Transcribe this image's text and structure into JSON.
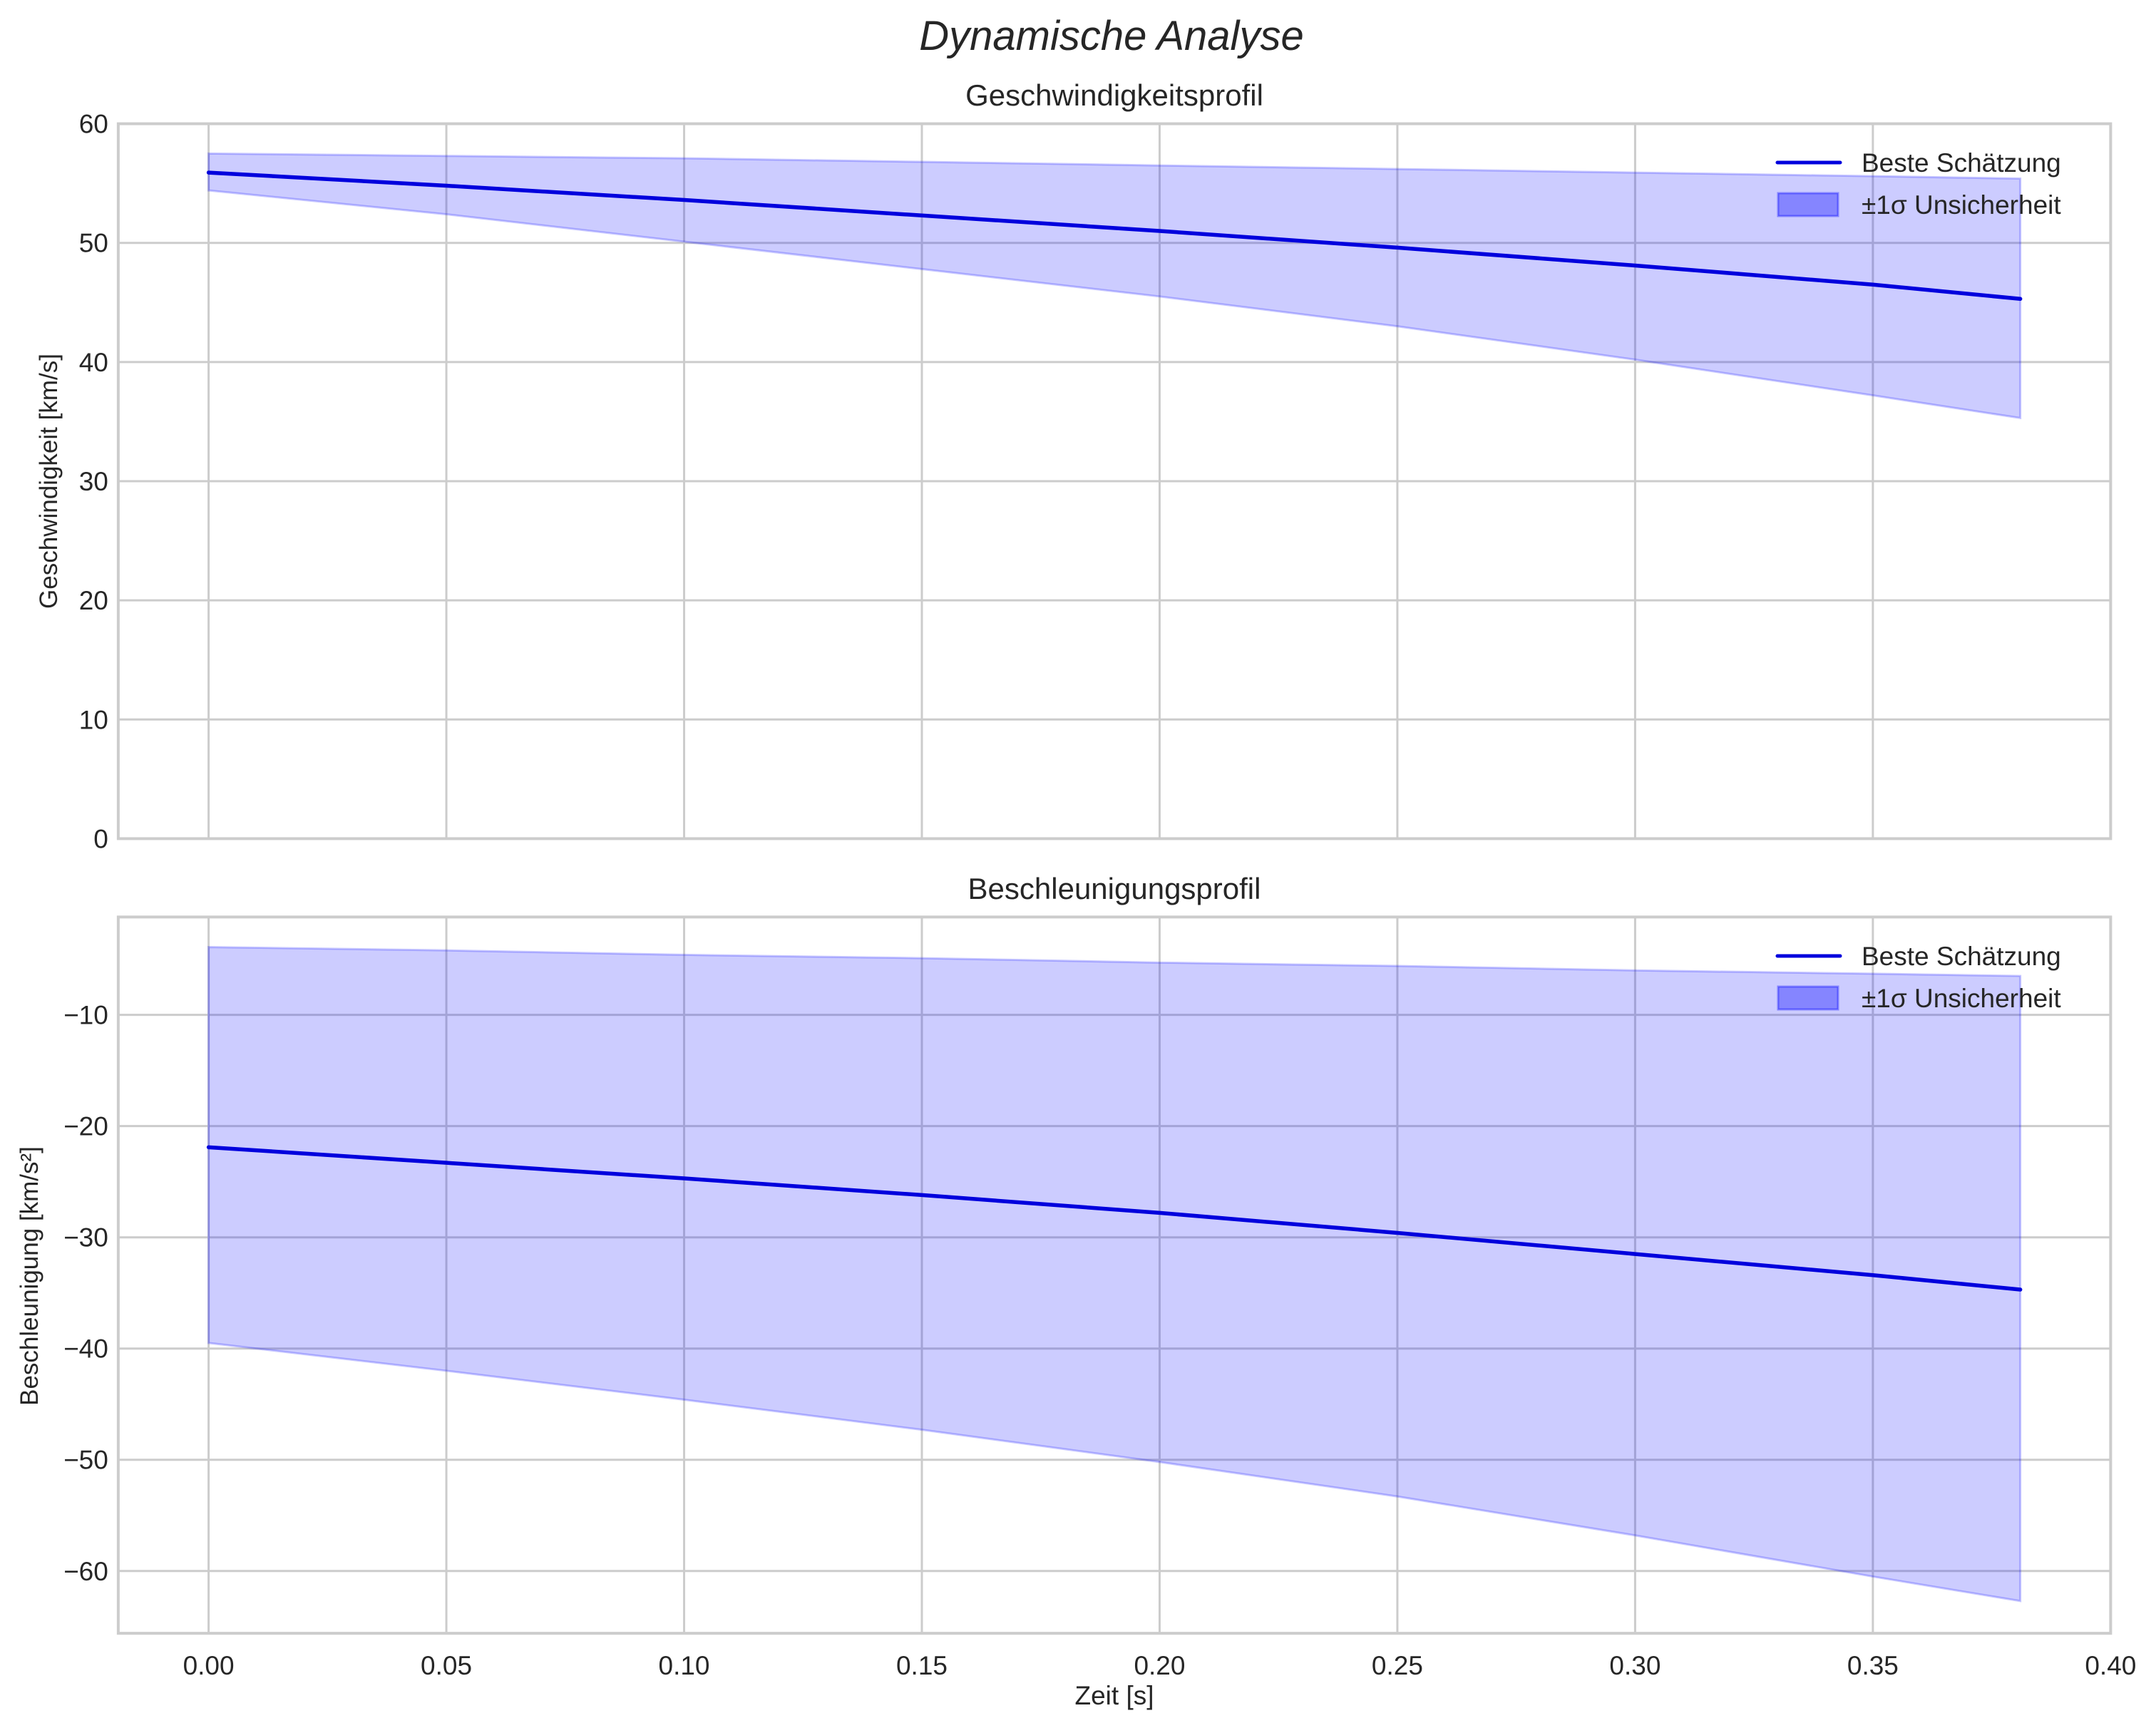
{
  "figure": {
    "suptitle": "Dynamische Analyse",
    "xlabel": "Zeit [s]",
    "xticks": [
      "0.00",
      "0.05",
      "0.10",
      "0.15",
      "0.20",
      "0.25",
      "0.30",
      "0.35",
      "0.40"
    ],
    "colors": {
      "line": "#0000dd",
      "band_fill": "#0000ff",
      "band_alpha": 0.2,
      "grid": "#cccccc",
      "text": "#262626"
    },
    "legend": {
      "line_label": "Beste Schätzung",
      "band_label": "±1σ Unsicherheit"
    }
  },
  "chart_data": [
    {
      "type": "line",
      "title": "Geschwindigkeitsprofil",
      "xlabel": "",
      "ylabel": "Geschwindigkeit [km/s]",
      "xlim": [
        -0.019,
        0.4
      ],
      "ylim": [
        0,
        60
      ],
      "yticks": [
        "0",
        "10",
        "20",
        "30",
        "40",
        "50",
        "60"
      ],
      "grid": true,
      "legend_position": "upper right",
      "x": [
        0.0,
        0.05,
        0.1,
        0.15,
        0.2,
        0.25,
        0.3,
        0.35,
        0.381
      ],
      "series": [
        {
          "name": "Beste Schätzung",
          "values": [
            55.9,
            54.8,
            53.6,
            52.3,
            51.0,
            49.6,
            48.1,
            46.5,
            45.3
          ]
        },
        {
          "name": "±1σ Unsicherheit (obere Grenze)",
          "values": [
            57.5,
            57.3,
            57.1,
            56.8,
            56.5,
            56.2,
            55.9,
            55.6,
            55.4
          ]
        },
        {
          "name": "±1σ Unsicherheit (untere Grenze)",
          "values": [
            54.4,
            52.4,
            50.1,
            47.8,
            45.5,
            43.0,
            40.2,
            37.2,
            35.3
          ]
        }
      ]
    },
    {
      "type": "line",
      "title": "Beschleunigungsprofil",
      "xlabel": "Zeit [s]",
      "ylabel": "Beschleunigung [km/s²]",
      "xlim": [
        -0.019,
        0.4
      ],
      "ylim": [
        -65.6,
        -1.2
      ],
      "yticks": [
        "−10",
        "−20",
        "−30",
        "−40",
        "−50",
        "−60"
      ],
      "grid": true,
      "legend_position": "upper right",
      "x": [
        0.0,
        0.05,
        0.1,
        0.15,
        0.2,
        0.25,
        0.3,
        0.35,
        0.381
      ],
      "series": [
        {
          "name": "Beste Schätzung",
          "values": [
            -21.9,
            -23.3,
            -24.7,
            -26.2,
            -27.8,
            -29.6,
            -31.5,
            -33.4,
            -34.7
          ]
        },
        {
          "name": "±1σ Unsicherheit (obere Grenze)",
          "values": [
            -3.9,
            -4.2,
            -4.6,
            -4.9,
            -5.3,
            -5.6,
            -6.0,
            -6.3,
            -6.5
          ]
        },
        {
          "name": "±1σ Unsicherheit (untere Grenze)",
          "values": [
            -39.5,
            -42.0,
            -44.6,
            -47.3,
            -50.2,
            -53.3,
            -56.8,
            -60.5,
            -62.7
          ]
        }
      ]
    }
  ]
}
